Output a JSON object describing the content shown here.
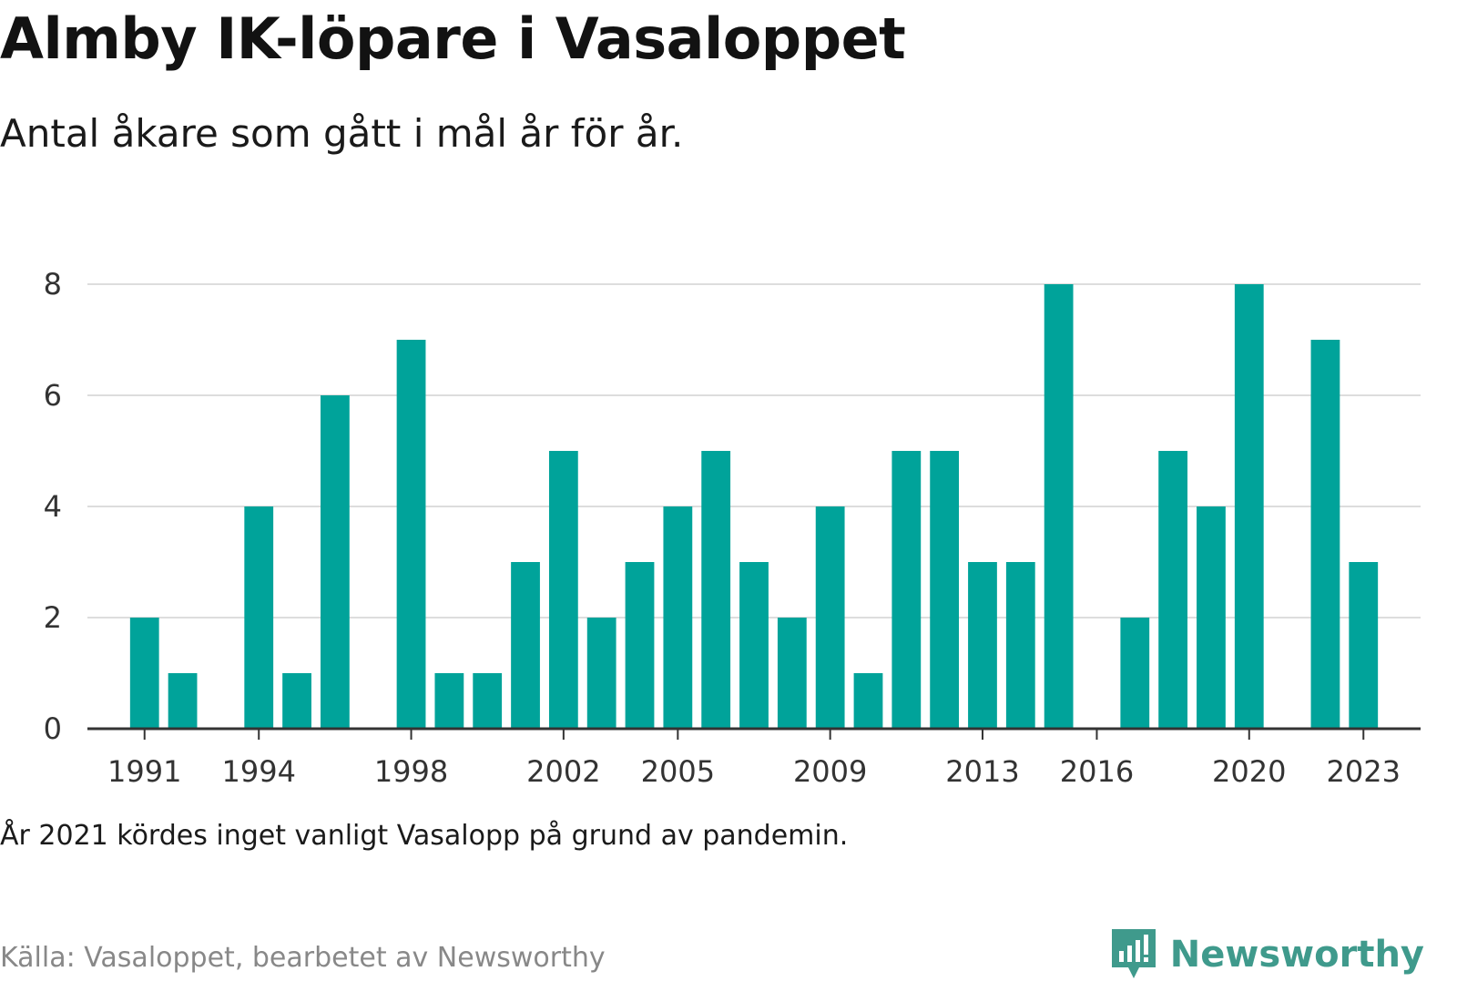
{
  "header": {
    "title": "Almby IK-löpare i Vasaloppet",
    "subtitle": "Antal åkare som gått i mål år för år."
  },
  "footer": {
    "note": "År 2021 kördes inget vanligt Vasalopp på grund av pandemin.",
    "source": "Källa: Vasaloppet, bearbetet av Newsworthy",
    "brand": "Newsworthy",
    "brand_icon": "newsworthy-logo-icon"
  },
  "colors": {
    "bar": "#00a39a",
    "grid": "#dddddd",
    "axis": "#333333",
    "brand": "#3f9a8c"
  },
  "chart_data": {
    "type": "bar",
    "title": "Almby IK-löpare i Vasaloppet",
    "subtitle": "Antal åkare som gått i mål år för år.",
    "xlabel": "",
    "ylabel": "",
    "ylim": [
      0,
      8
    ],
    "yticks": [
      0,
      2,
      4,
      6,
      8
    ],
    "xticks": [
      1991,
      1994,
      1998,
      2002,
      2005,
      2009,
      2013,
      2016,
      2020,
      2023
    ],
    "grid": true,
    "categories": [
      1990,
      1991,
      1992,
      1993,
      1994,
      1995,
      1996,
      1997,
      1998,
      1999,
      2000,
      2001,
      2002,
      2003,
      2004,
      2005,
      2006,
      2007,
      2008,
      2009,
      2010,
      2011,
      2012,
      2013,
      2014,
      2015,
      2016,
      2017,
      2018,
      2019,
      2020,
      2021,
      2022,
      2023,
      2024
    ],
    "values": [
      0,
      2,
      1,
      0,
      4,
      1,
      6,
      0,
      7,
      1,
      1,
      3,
      5,
      2,
      3,
      4,
      5,
      3,
      2,
      4,
      1,
      5,
      5,
      3,
      3,
      8,
      0,
      2,
      5,
      4,
      8,
      0,
      7,
      3,
      0
    ]
  }
}
